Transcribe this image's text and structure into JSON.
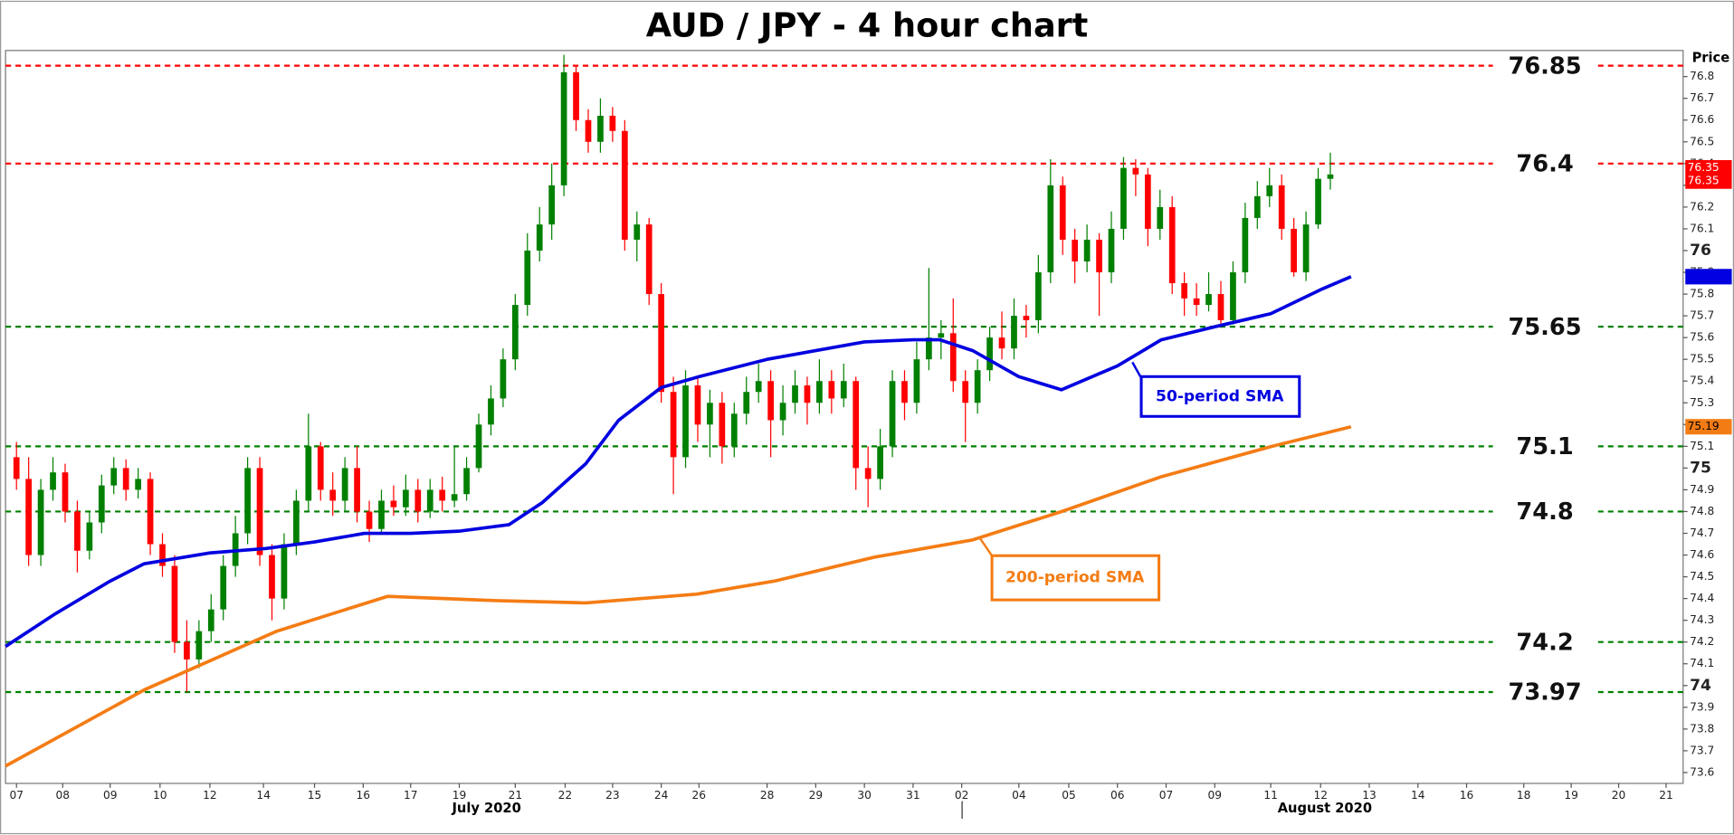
{
  "chart_data": {
    "type": "candlestick",
    "title": "AUD / JPY - 4 hour chart",
    "y_axis_label": "Price",
    "x_group_labels": [
      "July 2020",
      "August 2020"
    ],
    "up_color": "#008000",
    "down_color": "#ff0000",
    "ylim": [
      73.55,
      76.92
    ],
    "yticks": [
      73.6,
      73.7,
      73.8,
      73.9,
      74,
      74.1,
      74.2,
      74.3,
      74.4,
      74.5,
      74.6,
      74.7,
      74.8,
      74.9,
      75,
      75.1,
      75.2,
      75.3,
      75.4,
      75.5,
      75.6,
      75.7,
      75.8,
      75.9,
      76,
      76.1,
      76.2,
      76.3,
      76.4,
      76.5,
      76.6,
      76.7,
      76.8
    ],
    "xlim": [
      -0.9,
      137
    ],
    "xticks": [
      {
        "value": 0,
        "label": "07"
      },
      {
        "value": 3.8,
        "label": "08"
      },
      {
        "value": 7.7,
        "label": "09"
      },
      {
        "value": 11.8,
        "label": "10"
      },
      {
        "value": 15.9,
        "label": "12"
      },
      {
        "value": 20.3,
        "label": "14"
      },
      {
        "value": 24.5,
        "label": "15"
      },
      {
        "value": 28.5,
        "label": "16"
      },
      {
        "value": 32.4,
        "label": "17"
      },
      {
        "value": 36.4,
        "label": "19"
      },
      {
        "value": 41,
        "label": "21"
      },
      {
        "value": 45.1,
        "label": "22"
      },
      {
        "value": 49,
        "label": "23"
      },
      {
        "value": 53,
        "label": "24"
      },
      {
        "value": 56.1,
        "label": "26"
      },
      {
        "value": 61.7,
        "label": "28"
      },
      {
        "value": 65.7,
        "label": "29"
      },
      {
        "value": 69.7,
        "label": "30"
      },
      {
        "value": 73.7,
        "label": "31"
      },
      {
        "value": 77.7,
        "label": "02"
      },
      {
        "value": 82.4,
        "label": "04"
      },
      {
        "value": 86.5,
        "label": "05"
      },
      {
        "value": 90.5,
        "label": "06"
      },
      {
        "value": 94.5,
        "label": "07"
      },
      {
        "value": 98.5,
        "label": "09"
      },
      {
        "value": 103.1,
        "label": "11"
      },
      {
        "value": 107.2,
        "label": "12"
      },
      {
        "value": 111.2,
        "label": "13"
      },
      {
        "value": 115.2,
        "label": "14"
      },
      {
        "value": 119.2,
        "label": "16"
      },
      {
        "value": 123.9,
        "label": "18"
      },
      {
        "value": 127.8,
        "label": "19"
      },
      {
        "value": 131.7,
        "label": "20"
      },
      {
        "value": 135.6,
        "label": "21"
      }
    ],
    "ohlc": [
      [
        75.05,
        75.12,
        74.9,
        74.95
      ],
      [
        74.95,
        75.05,
        74.55,
        74.6
      ],
      [
        74.6,
        74.95,
        74.55,
        74.9
      ],
      [
        74.9,
        75.05,
        74.85,
        74.98
      ],
      [
        74.98,
        75.02,
        74.75,
        74.8
      ],
      [
        74.8,
        74.85,
        74.52,
        74.62
      ],
      [
        74.62,
        74.8,
        74.58,
        74.75
      ],
      [
        74.75,
        74.97,
        74.7,
        74.92
      ],
      [
        74.92,
        75.05,
        74.88,
        75.0
      ],
      [
        75.0,
        75.04,
        74.85,
        74.9
      ],
      [
        74.9,
        75.0,
        74.86,
        74.95
      ],
      [
        74.95,
        74.98,
        74.6,
        74.65
      ],
      [
        74.65,
        74.7,
        74.5,
        74.55
      ],
      [
        74.55,
        74.6,
        74.15,
        74.2
      ],
      [
        74.2,
        74.3,
        73.97,
        74.12
      ],
      [
        74.12,
        74.3,
        74.08,
        74.25
      ],
      [
        74.25,
        74.42,
        74.2,
        74.35
      ],
      [
        74.35,
        74.6,
        74.3,
        74.55
      ],
      [
        74.55,
        74.78,
        74.5,
        74.7
      ],
      [
        74.7,
        75.05,
        74.65,
        75.0
      ],
      [
        75.0,
        75.05,
        74.55,
        74.6
      ],
      [
        74.6,
        74.65,
        74.3,
        74.4
      ],
      [
        74.4,
        74.7,
        74.35,
        74.65
      ],
      [
        74.65,
        74.9,
        74.6,
        74.85
      ],
      [
        74.85,
        75.25,
        74.8,
        75.1
      ],
      [
        75.1,
        75.12,
        74.85,
        74.9
      ],
      [
        74.9,
        74.98,
        74.78,
        74.85
      ],
      [
        74.85,
        75.05,
        74.8,
        75.0
      ],
      [
        75.0,
        75.1,
        74.75,
        74.8
      ],
      [
        74.8,
        74.85,
        74.66,
        74.72
      ],
      [
        74.72,
        74.9,
        74.7,
        74.85
      ],
      [
        74.85,
        74.92,
        74.78,
        74.82
      ],
      [
        74.82,
        74.97,
        74.78,
        74.9
      ],
      [
        74.9,
        74.95,
        74.75,
        74.8
      ],
      [
        74.8,
        74.95,
        74.77,
        74.9
      ],
      [
        74.9,
        74.96,
        74.8,
        74.85
      ],
      [
        74.85,
        75.1,
        74.82,
        74.88
      ],
      [
        74.88,
        75.05,
        74.85,
        75.0
      ],
      [
        75.0,
        75.25,
        74.98,
        75.2
      ],
      [
        75.2,
        75.38,
        75.15,
        75.32
      ],
      [
        75.32,
        75.55,
        75.28,
        75.5
      ],
      [
        75.5,
        75.8,
        75.45,
        75.75
      ],
      [
        75.75,
        76.08,
        75.7,
        76.0
      ],
      [
        76.0,
        76.2,
        75.95,
        76.12
      ],
      [
        76.12,
        76.4,
        76.05,
        76.3
      ],
      [
        76.3,
        76.9,
        76.25,
        76.82
      ],
      [
        76.82,
        76.85,
        76.55,
        76.6
      ],
      [
        76.6,
        76.65,
        76.45,
        76.5
      ],
      [
        76.5,
        76.7,
        76.45,
        76.62
      ],
      [
        76.62,
        76.66,
        76.5,
        76.55
      ],
      [
        76.55,
        76.6,
        76.0,
        76.05
      ],
      [
        76.05,
        76.18,
        75.95,
        76.12
      ],
      [
        76.12,
        76.15,
        75.75,
        75.8
      ],
      [
        75.8,
        75.85,
        75.3,
        75.35
      ],
      [
        75.35,
        75.42,
        74.88,
        75.05
      ],
      [
        75.05,
        75.45,
        75.0,
        75.38
      ],
      [
        75.38,
        75.42,
        75.12,
        75.2
      ],
      [
        75.2,
        75.36,
        75.05,
        75.3
      ],
      [
        75.3,
        75.35,
        75.02,
        75.1
      ],
      [
        75.1,
        75.3,
        75.05,
        75.25
      ],
      [
        75.25,
        75.42,
        75.2,
        75.35
      ],
      [
        75.35,
        75.48,
        75.3,
        75.4
      ],
      [
        75.4,
        75.45,
        75.05,
        75.22
      ],
      [
        75.22,
        75.38,
        75.15,
        75.3
      ],
      [
        75.3,
        75.45,
        75.25,
        75.38
      ],
      [
        75.38,
        75.42,
        75.2,
        75.3
      ],
      [
        75.3,
        75.5,
        75.25,
        75.4
      ],
      [
        75.4,
        75.45,
        75.25,
        75.32
      ],
      [
        75.32,
        75.48,
        75.28,
        75.4
      ],
      [
        75.4,
        75.42,
        74.9,
        75.0
      ],
      [
        75.0,
        75.1,
        74.82,
        74.95
      ],
      [
        74.95,
        75.18,
        74.9,
        75.1
      ],
      [
        75.1,
        75.45,
        75.05,
        75.4
      ],
      [
        75.4,
        75.45,
        75.22,
        75.3
      ],
      [
        75.3,
        75.58,
        75.25,
        75.5
      ],
      [
        75.5,
        75.92,
        75.45,
        75.6
      ],
      [
        75.6,
        75.68,
        75.5,
        75.62
      ],
      [
        75.62,
        75.78,
        75.35,
        75.4
      ],
      [
        75.4,
        75.45,
        75.12,
        75.3
      ],
      [
        75.3,
        75.5,
        75.25,
        75.45
      ],
      [
        75.45,
        75.65,
        75.4,
        75.6
      ],
      [
        75.6,
        75.72,
        75.5,
        75.55
      ],
      [
        75.55,
        75.78,
        75.5,
        75.7
      ],
      [
        75.7,
        75.75,
        75.6,
        75.68
      ],
      [
        75.68,
        75.98,
        75.62,
        75.9
      ],
      [
        75.9,
        76.42,
        75.85,
        76.3
      ],
      [
        76.3,
        76.34,
        75.98,
        76.05
      ],
      [
        76.05,
        76.1,
        75.85,
        75.95
      ],
      [
        75.95,
        76.12,
        75.9,
        76.05
      ],
      [
        76.05,
        76.08,
        75.7,
        75.9
      ],
      [
        75.9,
        76.18,
        75.85,
        76.1
      ],
      [
        76.1,
        76.43,
        76.05,
        76.38
      ],
      [
        76.38,
        76.42,
        76.25,
        76.35
      ],
      [
        76.35,
        76.38,
        76.02,
        76.1
      ],
      [
        76.1,
        76.28,
        76.05,
        76.2
      ],
      [
        76.2,
        76.25,
        75.8,
        75.85
      ],
      [
        75.85,
        75.9,
        75.7,
        75.78
      ],
      [
        75.78,
        75.85,
        75.7,
        75.75
      ],
      [
        75.75,
        75.9,
        75.72,
        75.8
      ],
      [
        75.8,
        75.86,
        75.65,
        75.68
      ],
      [
        75.68,
        75.95,
        75.66,
        75.9
      ],
      [
        75.9,
        76.22,
        75.85,
        76.15
      ],
      [
        76.15,
        76.32,
        76.1,
        76.25
      ],
      [
        76.25,
        76.38,
        76.2,
        76.3
      ],
      [
        76.3,
        76.35,
        76.05,
        76.1
      ],
      [
        76.1,
        76.15,
        75.88,
        75.9
      ],
      [
        75.9,
        76.18,
        75.86,
        76.12
      ],
      [
        76.12,
        76.38,
        76.1,
        76.33
      ],
      [
        76.33,
        76.45,
        76.28,
        76.35
      ]
    ],
    "series": [
      {
        "name": "50-period SMA",
        "color": "#0000e0",
        "x": [
          -0.9,
          3.2,
          7.7,
          10.5,
          15.9,
          20.5,
          24.5,
          28.6,
          32.4,
          36.4,
          40.5,
          43.2,
          46.8,
          49.5,
          53,
          56.1,
          61.7,
          69.7,
          73.7,
          75.9,
          78.6,
          82.4,
          85.9,
          90.5,
          94.1,
          98.5,
          103.1,
          107.2,
          109.7
        ],
        "values": [
          74.18,
          74.33,
          74.48,
          74.56,
          74.61,
          74.63,
          74.66,
          74.7,
          74.7,
          74.71,
          74.74,
          74.84,
          75.02,
          75.22,
          75.37,
          75.42,
          75.5,
          75.58,
          75.59,
          75.59,
          75.54,
          75.42,
          75.36,
          75.47,
          75.59,
          75.65,
          75.71,
          75.82,
          75.88
        ]
      },
      {
        "name": "200-period SMA",
        "color": "#f47c14",
        "x": [
          -0.9,
          10.5,
          21.4,
          30.5,
          39.5,
          46.8,
          55.9,
          62.3,
          70.5,
          78.6,
          85.9,
          94.1,
          103.2,
          109.7
        ],
        "values": [
          73.63,
          73.98,
          74.25,
          74.41,
          74.39,
          74.38,
          74.42,
          74.48,
          74.59,
          74.67,
          74.8,
          74.96,
          75.1,
          75.19
        ]
      }
    ],
    "levels": [
      {
        "value": 76.85,
        "color": "#ff0000"
      },
      {
        "value": 76.4,
        "color": "#ff0000"
      },
      {
        "value": 75.65,
        "color": "#008000"
      },
      {
        "value": 75.1,
        "color": "#008000"
      },
      {
        "value": 74.8,
        "color": "#008000"
      },
      {
        "value": 74.2,
        "color": "#008000"
      },
      {
        "value": 73.97,
        "color": "#008000"
      }
    ],
    "last_price": 76.35,
    "sma200_tag": 75.19
  }
}
